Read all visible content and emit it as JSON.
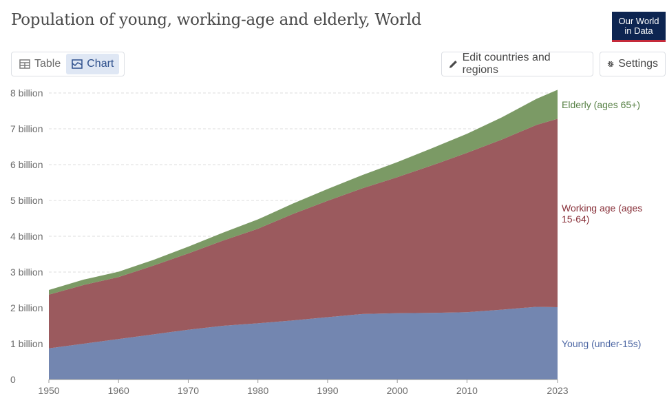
{
  "header": {
    "title": "Population of young, working-age and elderly, World",
    "logo_line1": "Our World",
    "logo_line2": "in Data"
  },
  "tabs": [
    {
      "label": "Table",
      "icon": "table-icon",
      "active": false
    },
    {
      "label": "Chart",
      "icon": "chart-icon",
      "active": true
    }
  ],
  "actions": {
    "edit_label": "Edit countries and regions",
    "settings_label": "Settings"
  },
  "colors": {
    "young": "#7386b0",
    "working": "#9b5a5e",
    "elderly": "#7b9a65",
    "young_label": "#4c66a3",
    "working_label": "#883039",
    "elderly_label": "#578145"
  },
  "chart_data": {
    "type": "area",
    "stacked": true,
    "x": [
      1950,
      1955,
      1960,
      1965,
      1970,
      1975,
      1980,
      1985,
      1990,
      1995,
      2000,
      2005,
      2010,
      2015,
      2020,
      2023
    ],
    "x_ticks": [
      "1950",
      "1960",
      "1970",
      "1980",
      "1990",
      "2000",
      "2010",
      "2023"
    ],
    "y_ticks": [
      "0",
      "1 billion",
      "2 billion",
      "3 billion",
      "4 billion",
      "5 billion",
      "6 billion",
      "7 billion",
      "8 billion"
    ],
    "ylim": [
      0,
      8000000000
    ],
    "grid": "horizontal dashed",
    "legend": "right, inline labels",
    "series": [
      {
        "name": "Young (under-15s)",
        "values": [
          870000000.0,
          1000000000.0,
          1130000000.0,
          1260000000.0,
          1390000000.0,
          1500000000.0,
          1570000000.0,
          1650000000.0,
          1740000000.0,
          1830000000.0,
          1850000000.0,
          1860000000.0,
          1880000000.0,
          1950000000.0,
          2030000000.0,
          2020000000.0
        ]
      },
      {
        "name": "Working age (ages 15-64)",
        "values": [
          1500000000.0,
          1640000000.0,
          1730000000.0,
          1920000000.0,
          2130000000.0,
          2380000000.0,
          2640000000.0,
          2970000000.0,
          3250000000.0,
          3510000000.0,
          3800000000.0,
          4120000000.0,
          4450000000.0,
          4750000000.0,
          5080000000.0,
          5260000000.0
        ]
      },
      {
        "name": "Elderly (ages 65+)",
        "values": [
          130000000.0,
          150000000.0,
          150000000.0,
          160000000.0,
          190000000.0,
          220000000.0,
          260000000.0,
          290000000.0,
          330000000.0,
          370000000.0,
          420000000.0,
          480000000.0,
          530000000.0,
          620000000.0,
          730000000.0,
          810000000.0
        ]
      }
    ],
    "labels": {
      "elderly": "Elderly (ages 65+)",
      "working_line1": "Working age (ages",
      "working_line2": "15-64)",
      "young": "Young (under-15s)"
    }
  }
}
